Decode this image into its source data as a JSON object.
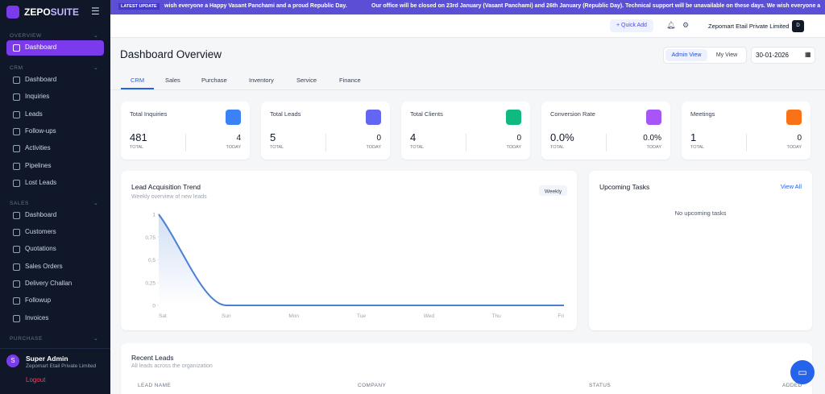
{
  "sidebar": {
    "brand_a": "ZEPO",
    "brand_b": "SUITE",
    "sections": [
      {
        "title": "OVERVIEW",
        "items": [
          "Dashboard"
        ]
      },
      {
        "title": "CRM",
        "items": [
          "Dashboard",
          "Inquiries",
          "Leads",
          "Follow-ups",
          "Activities",
          "Pipelines",
          "Lost Leads"
        ]
      },
      {
        "title": "SALES",
        "items": [
          "Dashboard",
          "Customers",
          "Quotations",
          "Sales Orders",
          "Delivery Challan",
          "Followup",
          "Invoices"
        ]
      },
      {
        "title": "PURCHASE",
        "items": []
      }
    ],
    "user": {
      "avatar": "S",
      "name": "Super Admin",
      "org": "Zepomart Etail Private Limited"
    },
    "logout": "Logout"
  },
  "banner": {
    "label": "LATEST UPDATE",
    "messages": [
      "wish everyone a Happy Vasant Panchami and a proud Republic Day.",
      "Our office will be closed on 23rd January (Vasant Panchami) and 26th January (Republic Day). Technical support will be unavailable on these days. We wish everyone a"
    ]
  },
  "header": {
    "quick_add": "Quick Add",
    "company": "Zepomart Etail Private Limited",
    "avatar": "D"
  },
  "page": {
    "title": "Dashboard Overview",
    "views": [
      "Admin View",
      "My View"
    ],
    "date": "30-01-2026"
  },
  "tabs": [
    "CRM",
    "Sales",
    "Purchase",
    "Inventory",
    "Service",
    "Finance"
  ],
  "stats": [
    {
      "title": "Total Inquiries",
      "total": "481",
      "total_label": "TOTAL",
      "today": "4",
      "today_label": "TODAY",
      "color": "#3b82f6"
    },
    {
      "title": "Total Leads",
      "total": "5",
      "total_label": "TOTAL",
      "today": "0",
      "today_label": "TODAY",
      "color": "#6366f1"
    },
    {
      "title": "Total Clients",
      "total": "4",
      "total_label": "TOTAL",
      "today": "0",
      "today_label": "TODAY",
      "color": "#10b981"
    },
    {
      "title": "Conversion Rate",
      "total": "0.0%",
      "total_label": "TOTAL",
      "today": "0.0%",
      "today_label": "TODAY",
      "color": "#a855f7"
    },
    {
      "title": "Meetings",
      "total": "1",
      "total_label": "TOTAL",
      "today": "0",
      "today_label": "TODAY",
      "color": "#f97316"
    }
  ],
  "chart_data": {
    "type": "line",
    "title": "Lead Acquisition Trend",
    "subtitle": "Weekly overview of new leads",
    "period": "Weekly",
    "categories": [
      "Sat",
      "Sun",
      "Mon",
      "Tue",
      "Wed",
      "Thu",
      "Fri"
    ],
    "series": [
      {
        "color": "#4a7fd6",
        "values": [
          1,
          0,
          0,
          0,
          0,
          0,
          0
        ]
      }
    ],
    "ylim": [
      0,
      1
    ],
    "yticks": [
      0,
      {
        "value": 0.25,
        "label": "0,25"
      },
      {
        "value": 0.5,
        "label": "0,5"
      },
      {
        "value": 0.75,
        "label": "0,75"
      },
      1
    ]
  },
  "tasks": {
    "title": "Upcoming Tasks",
    "link": "View All",
    "empty": "No upcoming tasks"
  },
  "recent_leads": {
    "title": "Recent Leads",
    "subtitle": "All leads across the organization",
    "columns": [
      "LEAD NAME",
      "COMPANY",
      "STATUS",
      "ADDED"
    ]
  }
}
